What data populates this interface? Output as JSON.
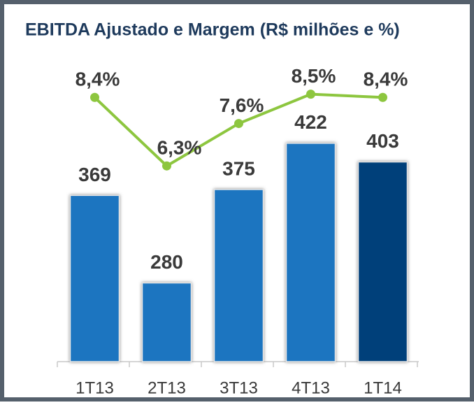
{
  "chart_data": {
    "type": "bar-line",
    "title": "EBITDA Ajustado e Margem (R$ milhões e %)",
    "categories": [
      "1T13",
      "2T13",
      "3T13",
      "4T13",
      "1T14"
    ],
    "series": [
      {
        "name": "EBITDA Ajustado",
        "type": "bar",
        "colors": [
          "#1f74c0",
          "#1f74c0",
          "#1f74c0",
          "#1f74c0",
          "#003f7a"
        ],
        "values": [
          369,
          280,
          375,
          422,
          403
        ]
      },
      {
        "name": "Margem",
        "type": "line",
        "axis": "y2",
        "color": "#8dc63f",
        "values": [
          8.4,
          6.3,
          7.6,
          8.5,
          8.4
        ],
        "value_labels": [
          "8,4%",
          "6,3%",
          "7,6%",
          "8,5%",
          "8,4%"
        ]
      }
    ],
    "ylim": [
      200,
      525
    ],
    "y2lim": [
      0.3,
      10.1
    ]
  }
}
